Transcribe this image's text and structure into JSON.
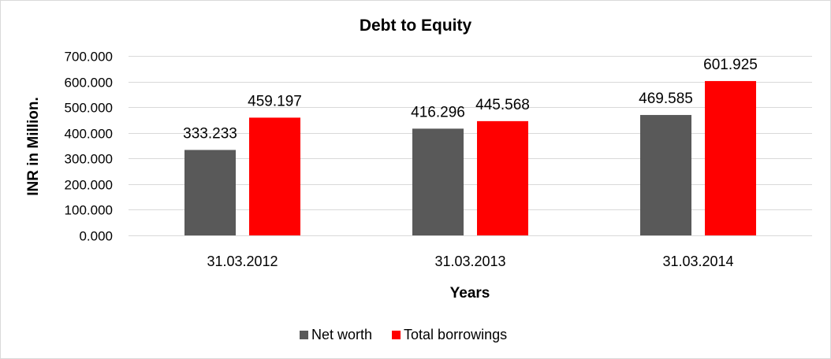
{
  "chart_data": {
    "type": "bar",
    "title": "Debt to Equity",
    "xlabel": "Years",
    "ylabel": "INR in Million.",
    "categories": [
      "31.03.2012",
      "31.03.2013",
      "31.03.2014"
    ],
    "series": [
      {
        "name": "Net worth",
        "color": "#595959",
        "values": [
          333.233,
          416.296,
          469.585
        ],
        "labels": [
          "333.233",
          "416.296",
          "469.585"
        ]
      },
      {
        "name": "Total borrowings",
        "color": "#ff0000",
        "values": [
          459.197,
          445.568,
          601.925
        ],
        "labels": [
          "459.197",
          "445.568",
          "601.925"
        ]
      }
    ],
    "ylim": [
      0,
      700
    ],
    "yticks": [
      0,
      100,
      200,
      300,
      400,
      500,
      600,
      700
    ],
    "ytick_labels": [
      "0.000",
      "100.000",
      "200.000",
      "300.000",
      "400.000",
      "500.000",
      "600.000",
      "700.000"
    ],
    "grid": true,
    "gridline_color": "#d9d9d9",
    "legend_position": "bottom"
  }
}
